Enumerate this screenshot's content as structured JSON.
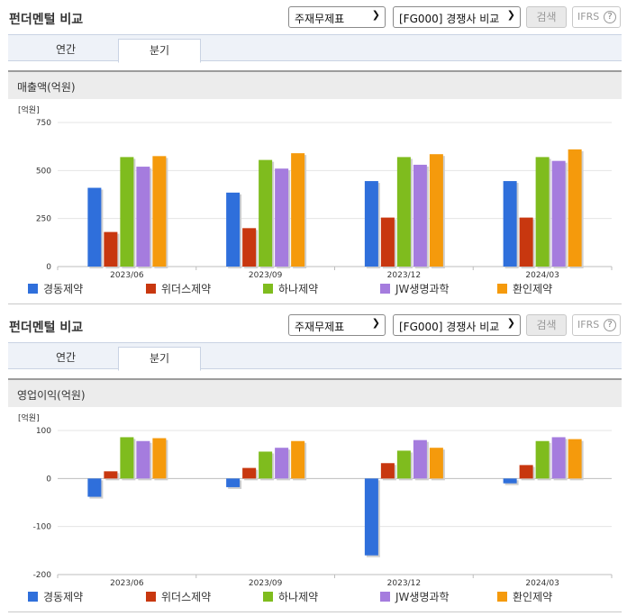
{
  "panels": [
    {
      "title": "펀더멘털 비교",
      "select1": "주재무제표",
      "select2": "[FG000] 경쟁사 비교",
      "search_label": "검색",
      "ifrs_label": "IFRS",
      "ifrs_help": "?",
      "tabs": [
        "연간",
        "분기"
      ],
      "active_tab": "분기",
      "section_title": "매출액(억원)",
      "chart_data": {
        "type": "bar",
        "unit_label": "[억원]",
        "categories": [
          "2023/06",
          "2023/09",
          "2023/12",
          "2024/03"
        ],
        "ylim": [
          0,
          750
        ],
        "yticks": [
          0,
          250,
          500,
          750
        ],
        "series": [
          {
            "name": "경동제약",
            "color": "#2f6fdb",
            "values": [
              410,
              385,
              445,
              445
            ]
          },
          {
            "name": "위더스제약",
            "color": "#c8370f",
            "values": [
              180,
              200,
              255,
              255
            ]
          },
          {
            "name": "하나제약",
            "color": "#7fbc1e",
            "values": [
              570,
              555,
              570,
              570
            ]
          },
          {
            "name": "JW생명과학",
            "color": "#a57cde",
            "values": [
              520,
              510,
              530,
              550
            ]
          },
          {
            "name": "환인제약",
            "color": "#f59a0c",
            "values": [
              575,
              590,
              585,
              610
            ]
          }
        ],
        "grid": true,
        "legend_position": "bottom"
      }
    },
    {
      "title": "펀더멘털 비교",
      "select1": "주재무제표",
      "select2": "[FG000] 경쟁사 비교",
      "search_label": "검색",
      "ifrs_label": "IFRS",
      "ifrs_help": "?",
      "tabs": [
        "연간",
        "분기"
      ],
      "active_tab": "분기",
      "section_title": "영업이익(억원)",
      "chart_data": {
        "type": "bar",
        "unit_label": "[억원]",
        "categories": [
          "2023/06",
          "2023/09",
          "2023/12",
          "2024/03"
        ],
        "ylim": [
          -200,
          100
        ],
        "yticks": [
          -200,
          -100,
          0,
          100
        ],
        "series": [
          {
            "name": "경동제약",
            "color": "#2f6fdb",
            "values": [
              -38,
              -18,
              -160,
              -10
            ]
          },
          {
            "name": "위더스제약",
            "color": "#c8370f",
            "values": [
              15,
              22,
              32,
              28
            ]
          },
          {
            "name": "하나제약",
            "color": "#7fbc1e",
            "values": [
              86,
              56,
              58,
              78
            ]
          },
          {
            "name": "JW생명과학",
            "color": "#a57cde",
            "values": [
              78,
              64,
              80,
              86
            ]
          },
          {
            "name": "환인제약",
            "color": "#f59a0c",
            "values": [
              84,
              78,
              64,
              82
            ]
          }
        ],
        "grid": true,
        "legend_position": "bottom"
      }
    }
  ]
}
